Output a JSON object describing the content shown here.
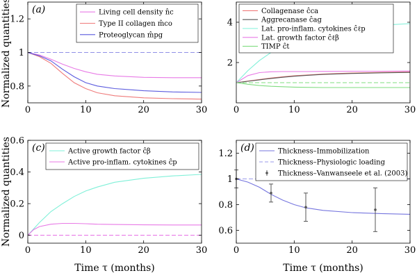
{
  "axes": {
    "shared_ylabel": "Normalized quantities",
    "shared_xlabel": "Time τ (months)"
  },
  "chart_data": [
    {
      "type": "line",
      "panel_label": "(a)",
      "xlim": [
        0,
        30
      ],
      "ylim": [
        0.7,
        1.3
      ],
      "xticks": [
        0,
        10,
        20,
        30
      ],
      "yticks": [
        0.8,
        1,
        1.2
      ],
      "ytick_labels": [
        "0.8",
        "1",
        "1.2"
      ],
      "legend_position": "top-right",
      "series": [
        {
          "name": "Living cell density n̂c",
          "color": "#e87ae6",
          "dash": "solid",
          "legend": true,
          "x": [
            0,
            2,
            4,
            6,
            8,
            10,
            12,
            15,
            20,
            25,
            30
          ],
          "y": [
            1,
            0.985,
            0.96,
            0.93,
            0.905,
            0.885,
            0.87,
            0.86,
            0.852,
            0.85,
            0.85
          ]
        },
        {
          "name": "Type II collagen m̂co",
          "color": "#ef7a7a",
          "dash": "solid",
          "legend": true,
          "x": [
            0,
            2,
            4,
            6,
            8,
            10,
            12,
            15,
            20,
            25,
            30
          ],
          "y": [
            1,
            0.975,
            0.935,
            0.875,
            0.82,
            0.785,
            0.76,
            0.742,
            0.73,
            0.725,
            0.722
          ]
        },
        {
          "name": "Proteoglycan m̂pg",
          "color": "#5a5ade",
          "dash": "solid",
          "legend": true,
          "x": [
            0,
            2,
            4,
            6,
            8,
            10,
            12,
            15,
            20,
            25,
            30
          ],
          "y": [
            1,
            0.98,
            0.95,
            0.9,
            0.855,
            0.82,
            0.8,
            0.785,
            0.772,
            0.765,
            0.762
          ]
        },
        {
          "name": "Physiologic baseline",
          "color": "#8f8fe6",
          "dash": "dashed",
          "legend": false,
          "x": [
            0,
            30
          ],
          "y": [
            1,
            1
          ]
        }
      ]
    },
    {
      "type": "line",
      "panel_label": "(b)",
      "xlim": [
        0,
        30
      ],
      "ylim": [
        0,
        5
      ],
      "xticks": [
        0,
        10,
        20,
        30
      ],
      "yticks": [
        2,
        4
      ],
      "ytick_labels": [
        "2",
        "4"
      ],
      "legend_position": "top-left",
      "series": [
        {
          "name": "Collagenase ĉca",
          "color": "#ef7a7a",
          "dash": "solid",
          "legend": true,
          "x": [
            0,
            2,
            4,
            6,
            8,
            10,
            12,
            15,
            20,
            25,
            30
          ],
          "y": [
            1,
            1.08,
            1.16,
            1.23,
            1.29,
            1.34,
            1.38,
            1.43,
            1.48,
            1.51,
            1.53
          ]
        },
        {
          "name": "Aggrecanase ĉag",
          "color": "#555555",
          "dash": "solid",
          "legend": true,
          "x": [
            0,
            2,
            4,
            6,
            8,
            10,
            12,
            15,
            20,
            25,
            30
          ],
          "y": [
            1,
            1.07,
            1.14,
            1.21,
            1.27,
            1.32,
            1.36,
            1.41,
            1.46,
            1.49,
            1.51
          ]
        },
        {
          "name": "Lat. pro-inflam. cytokines ĉℓp",
          "color": "#7ff0d8",
          "dash": "solid",
          "legend": true,
          "x": [
            0,
            2,
            4,
            6,
            8,
            10,
            12,
            15,
            20,
            25,
            30
          ],
          "y": [
            1,
            1.6,
            2.1,
            2.5,
            2.8,
            3.05,
            3.25,
            3.45,
            3.7,
            3.85,
            3.93
          ]
        },
        {
          "name": "Lat. growth factor ĉℓβ",
          "color": "#e87ae6",
          "dash": "solid",
          "legend": true,
          "x": [
            0,
            2,
            4,
            6,
            8,
            10,
            12,
            15,
            20,
            25,
            30
          ],
          "y": [
            1,
            1.35,
            1.5,
            1.54,
            1.55,
            1.55,
            1.55,
            1.56,
            1.57,
            1.57,
            1.58
          ]
        },
        {
          "name": "TIMP ĉt",
          "color": "#7fdc7f",
          "dash": "solid",
          "legend": true,
          "x": [
            0,
            2,
            4,
            6,
            8,
            10,
            12,
            15,
            20,
            25,
            30
          ],
          "y": [
            1,
            0.92,
            0.86,
            0.82,
            0.8,
            0.78,
            0.77,
            0.76,
            0.76,
            0.76,
            0.76
          ]
        },
        {
          "name": "Baseline",
          "color": "#7fdc7f",
          "dash": "dashed",
          "legend": false,
          "x": [
            0,
            30
          ],
          "y": [
            1,
            1
          ]
        }
      ]
    },
    {
      "type": "line",
      "panel_label": "(c)",
      "xlim": [
        0,
        30
      ],
      "ylim": [
        -0.05,
        0.6
      ],
      "xticks": [
        0,
        10,
        20,
        30
      ],
      "yticks": [
        0,
        0.2,
        0.4,
        0.6
      ],
      "ytick_labels": [
        "0",
        "0.2",
        "0.4",
        "0.6"
      ],
      "legend_position": "top-right",
      "series": [
        {
          "name": "Active growth factor ĉβ",
          "color": "#7ff0d8",
          "dash": "solid",
          "legend": true,
          "x": [
            0,
            2,
            4,
            6,
            8,
            10,
            12,
            15,
            20,
            25,
            30
          ],
          "y": [
            0,
            0.08,
            0.15,
            0.2,
            0.245,
            0.28,
            0.305,
            0.335,
            0.36,
            0.375,
            0.385
          ]
        },
        {
          "name": "Active pro-inflam. cytokines ĉp",
          "color": "#e87ae6",
          "dash": "solid",
          "legend": true,
          "x": [
            0,
            1,
            2,
            4,
            6,
            8,
            10,
            12,
            15,
            20,
            25,
            30
          ],
          "y": [
            0,
            0.035,
            0.055,
            0.07,
            0.075,
            0.075,
            0.073,
            0.07,
            0.068,
            0.066,
            0.065,
            0.065
          ]
        },
        {
          "name": "Baseline",
          "color": "#e87ae6",
          "dash": "dashed",
          "legend": false,
          "x": [
            0,
            30
          ],
          "y": [
            0,
            0
          ]
        }
      ]
    },
    {
      "type": "line",
      "panel_label": "(d)",
      "xlim": [
        0,
        30
      ],
      "ylim": [
        0.5,
        1.3
      ],
      "xticks": [
        0,
        10,
        20,
        30
      ],
      "yticks": [
        0.6,
        0.8,
        1,
        1.2
      ],
      "ytick_labels": [
        "0.6",
        "0.8",
        "1",
        "1.2"
      ],
      "legend_position": "top-right",
      "series": [
        {
          "name": "Thickness–Immobilization",
          "color": "#7575de",
          "dash": "solid",
          "legend": true,
          "x": [
            0,
            2,
            4,
            6,
            8,
            10,
            12,
            15,
            20,
            25,
            30
          ],
          "y": [
            1,
            0.975,
            0.935,
            0.88,
            0.835,
            0.8,
            0.775,
            0.755,
            0.738,
            0.73,
            0.725
          ]
        },
        {
          "name": "Thickness–Physiologic loading",
          "color": "#9a9aea",
          "dash": "dashed",
          "legend": true,
          "x": [
            0,
            30
          ],
          "y": [
            1,
            1
          ]
        }
      ],
      "errorbars": {
        "name": "Thickness–Vanwanseele et al. (2003)",
        "color": "#555555",
        "x": [
          0,
          6,
          12,
          24
        ],
        "y": [
          1.0,
          0.89,
          0.78,
          0.76
        ],
        "err": [
          0.07,
          0.07,
          0.11,
          0.17
        ]
      }
    }
  ]
}
